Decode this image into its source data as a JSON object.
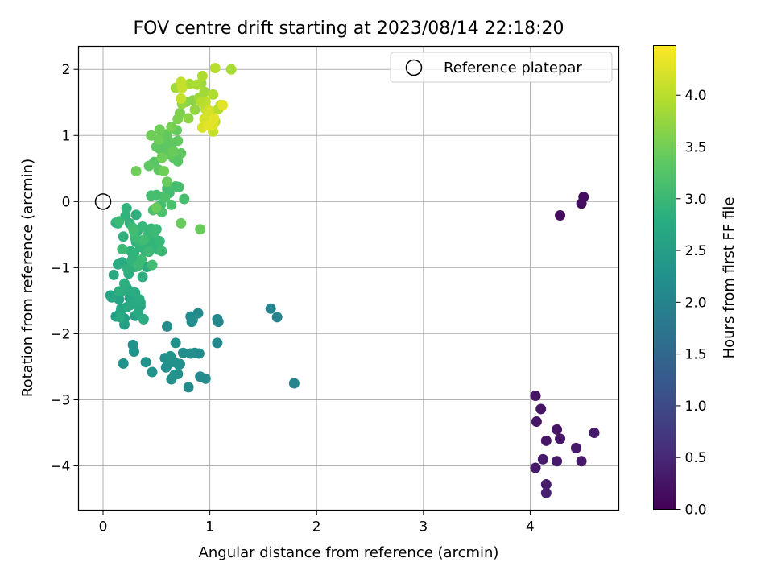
{
  "chart_data": {
    "type": "scatter",
    "title": "FOV centre drift starting at 2023/08/14 22:18:20",
    "xlabel": "Angular distance from reference (arcmin)",
    "ylabel": "Rotation from reference (arcmin)",
    "xlim": [
      -0.23,
      4.83
    ],
    "ylim": [
      -4.67,
      2.35
    ],
    "xticks": [
      0,
      1,
      2,
      3,
      4
    ],
    "yticks": [
      -4,
      -3,
      -2,
      -1,
      0,
      1,
      2
    ],
    "xtick_labels": [
      "0",
      "1",
      "2",
      "3",
      "4"
    ],
    "ytick_labels": [
      "−4",
      "−3",
      "−2",
      "−1",
      "0",
      "1",
      "2"
    ],
    "grid": true,
    "legend": {
      "placement": "top-right",
      "entries": [
        "Reference platepar"
      ]
    },
    "reference_point": {
      "x": 0,
      "y": 0
    },
    "colorbar": {
      "label": "Hours from first FF file",
      "colormap": "viridis",
      "range": [
        0,
        4.48
      ],
      "ticks": [
        0,
        0.5,
        1,
        1.5,
        2,
        2.5,
        3,
        3.5,
        4
      ],
      "tick_labels": [
        "0.0",
        "0.5",
        "1.0",
        "1.5",
        "2.0",
        "2.5",
        "3.0",
        "3.5",
        "4.0"
      ]
    },
    "x": [
      4.5,
      4.48,
      4.28,
      4.05,
      4.1,
      4.06,
      4.25,
      4.15,
      4.28,
      4.6,
      4.43,
      4.12,
      4.25,
      4.48,
      4.05,
      4.15,
      4.15,
      1.57,
      1.63,
      1.79,
      1.07,
      1.08,
      1.07,
      0.9,
      0.91,
      0.96,
      0.86,
      0.89,
      0.82,
      0.83,
      0.8,
      0.84,
      0.82,
      0.75,
      0.72,
      0.6,
      0.59,
      0.62,
      0.67,
      0.64,
      0.71,
      0.68,
      0.7,
      0.58,
      0.61,
      0.67,
      0.63,
      0.28,
      0.29,
      0.4,
      0.46,
      0.19,
      0.12,
      0.2,
      0.16,
      0.2,
      0.07,
      0.15,
      0.25,
      0.3,
      0.17,
      0.25,
      0.35,
      0.08,
      0.1,
      0.18,
      0.26,
      0.33,
      0.22,
      0.28,
      0.35,
      0.16,
      0.3,
      0.22,
      0.34,
      0.38,
      0.14,
      0.18,
      0.28,
      0.41,
      0.24,
      0.33,
      0.2,
      0.15,
      0.3,
      0.37,
      0.27,
      0.23,
      0.19,
      0.32,
      0.37,
      0.31,
      0.43,
      0.31,
      0.25,
      0.22,
      0.14,
      0.12,
      0.21,
      0.26,
      0.35,
      0.29,
      0.27,
      0.39,
      0.44,
      0.52,
      0.48,
      0.4,
      0.46,
      0.34,
      0.37,
      0.45,
      0.42,
      0.5,
      0.53,
      0.55,
      0.36,
      0.43,
      0.28,
      0.48,
      0.3,
      0.33,
      0.18,
      0.15,
      0.29,
      0.38,
      0.46,
      0.54,
      0.57,
      0.62,
      0.68,
      0.71,
      0.76,
      0.6,
      0.45,
      0.5,
      0.58,
      0.64,
      0.55,
      0.47,
      0.53,
      0.55,
      0.6,
      0.62,
      0.48,
      0.66,
      0.7,
      0.73,
      0.43,
      0.52,
      0.56,
      0.61,
      0.65,
      0.5,
      0.54,
      0.7,
      0.63,
      0.58,
      0.6,
      0.69,
      0.66,
      0.73,
      0.5,
      0.6,
      0.57,
      0.52,
      0.55,
      0.31,
      0.45,
      0.53,
      0.64,
      0.7,
      0.72,
      0.78,
      0.8,
      0.84,
      0.74,
      0.86,
      0.9,
      0.92,
      0.95,
      0.68,
      0.81,
      0.88,
      0.93,
      1.03,
      1.05,
      1.08,
      1.1,
      0.96,
      1.0,
      0.96,
      0.98,
      0.73,
      0.73,
      0.74,
      0.91,
      1.03,
      1.0,
      0.99,
      0.95,
      0.93,
      1.03,
      0.99,
      1.04,
      1.12,
      1.2,
      1.05,
      0.92
    ],
    "y": [
      0.07,
      -0.03,
      -0.21,
      -2.94,
      -3.14,
      -3.33,
      -3.45,
      -3.62,
      -3.59,
      -3.5,
      -3.73,
      -3.9,
      -3.93,
      -3.93,
      -4.03,
      -4.28,
      -4.41,
      -1.62,
      -1.75,
      -2.75,
      -1.78,
      -1.82,
      -2.14,
      -2.3,
      -2.65,
      -2.68,
      -2.29,
      -1.69,
      -1.74,
      -1.82,
      -2.81,
      -1.79,
      -2.3,
      -2.29,
      -2.46,
      -1.89,
      -2.51,
      -2.37,
      -2.43,
      -2.69,
      -2.47,
      -2.14,
      -2.61,
      -2.37,
      -2.46,
      -2.62,
      -2.34,
      -2.17,
      -2.27,
      -2.43,
      -2.58,
      -2.45,
      -1.74,
      -1.77,
      -1.69,
      -1.86,
      -1.42,
      -1.48,
      -1.57,
      -1.73,
      -1.62,
      -1.46,
      -1.58,
      -1.45,
      -1.11,
      -1.35,
      -1.36,
      -1.68,
      -1.6,
      -1.55,
      -1.53,
      -1.75,
      -1.38,
      -1.3,
      -1.48,
      -1.78,
      -0.95,
      -0.92,
      -0.85,
      -0.99,
      -1.09,
      -0.94,
      -1.24,
      -1.36,
      -0.99,
      -1.14,
      -0.89,
      -1.02,
      -0.53,
      -0.45,
      -0.64,
      -0.61,
      -0.52,
      -0.2,
      -0.33,
      -0.1,
      -0.33,
      -0.32,
      -0.22,
      -0.75,
      -0.69,
      -0.78,
      -0.9,
      -0.72,
      -0.66,
      -0.73,
      -0.62,
      -0.75,
      -0.56,
      -0.6,
      -0.38,
      -0.41,
      -0.51,
      -0.42,
      -0.6,
      -0.75,
      -0.88,
      -0.76,
      -0.4,
      -0.47,
      -0.55,
      -0.97,
      -0.72,
      -0.3,
      -0.45,
      -0.58,
      -0.96,
      -0.05,
      0.08,
      0.13,
      0.23,
      0.22,
      0.04,
      0.2,
      0.09,
      0.1,
      0.06,
      -0.05,
      -0.16,
      -0.13,
      0.8,
      0.88,
      0.94,
      0.78,
      0.6,
      0.66,
      0.61,
      0.73,
      0.54,
      0.48,
      0.72,
      0.85,
      0.89,
      0.83,
      0.95,
      0.92,
      0.71,
      0.98,
      1.02,
      1.08,
      0.76,
      -0.33,
      -0.09,
      0.3,
      0.46,
      0.94,
      0.66,
      0.46,
      1.0,
      1.09,
      1.13,
      1.25,
      1.34,
      1.51,
      1.26,
      1.53,
      1.48,
      1.39,
      1.57,
      1.79,
      1.66,
      1.72,
      1.78,
      1.77,
      1.9,
      1.62,
      1.21,
      1.4,
      1.46,
      1.4,
      1.37,
      1.51,
      1.3,
      1.56,
      1.81,
      1.72,
      -0.42,
      1.06,
      1.2,
      1.38,
      1.25,
      1.12,
      1.16,
      1.15,
      1.26,
      1.46,
      2.0,
      2.02,
      1.51
    ],
    "c": [
      0.15,
      0.15,
      0.15,
      0.25,
      0.25,
      0.25,
      0.25,
      0.25,
      0.25,
      0.3,
      0.3,
      0.3,
      0.3,
      0.3,
      0.35,
      0.35,
      0.4,
      2.0,
      2.0,
      2.05,
      2.1,
      2.1,
      2.1,
      2.15,
      2.15,
      2.15,
      2.15,
      2.15,
      2.15,
      2.15,
      2.15,
      2.2,
      2.2,
      2.2,
      2.2,
      2.2,
      2.2,
      2.2,
      2.25,
      2.25,
      2.25,
      2.25,
      2.25,
      2.25,
      2.25,
      2.3,
      2.3,
      2.3,
      2.3,
      2.3,
      2.3,
      2.3,
      2.55,
      2.55,
      2.55,
      2.55,
      2.6,
      2.6,
      2.6,
      2.6,
      2.65,
      2.65,
      2.65,
      2.65,
      2.7,
      2.7,
      2.7,
      2.7,
      2.7,
      2.7,
      2.7,
      2.7,
      2.75,
      2.75,
      2.75,
      2.75,
      2.75,
      2.75,
      2.75,
      2.75,
      2.75,
      2.8,
      2.8,
      2.8,
      2.8,
      2.8,
      2.8,
      2.85,
      2.85,
      2.85,
      2.85,
      2.85,
      2.85,
      2.85,
      2.9,
      2.9,
      2.9,
      2.9,
      2.9,
      2.9,
      2.9,
      2.9,
      2.9,
      2.95,
      2.95,
      2.95,
      2.95,
      2.95,
      2.95,
      3.0,
      3.0,
      3.0,
      3.0,
      3.0,
      3.0,
      3.05,
      3.05,
      3.05,
      3.05,
      3.05,
      3.05,
      3.05,
      3.05,
      3.05,
      3.1,
      3.1,
      3.1,
      3.1,
      3.1,
      3.1,
      3.15,
      3.15,
      3.15,
      3.15,
      3.15,
      3.15,
      3.2,
      3.2,
      3.2,
      3.2,
      3.3,
      3.3,
      3.3,
      3.3,
      3.3,
      3.3,
      3.3,
      3.35,
      3.35,
      3.35,
      3.35,
      3.35,
      3.35,
      3.35,
      3.4,
      3.4,
      3.4,
      3.4,
      3.4,
      3.4,
      3.45,
      3.45,
      3.45,
      3.45,
      3.5,
      3.5,
      3.5,
      3.5,
      3.5,
      3.5,
      3.55,
      3.6,
      3.6,
      3.65,
      3.7,
      3.7,
      3.75,
      3.75,
      3.8,
      3.8,
      3.85,
      3.85,
      3.9,
      3.9,
      3.95,
      3.95,
      4.0,
      4.0,
      4.0,
      4.05,
      4.05,
      4.05,
      4.1,
      4.1,
      4.1,
      4.1,
      3.45,
      4.1,
      4.15,
      4.2,
      4.2,
      4.25,
      4.25,
      4.3,
      4.3,
      4.3,
      3.9,
      4.0,
      4.0
    ]
  }
}
